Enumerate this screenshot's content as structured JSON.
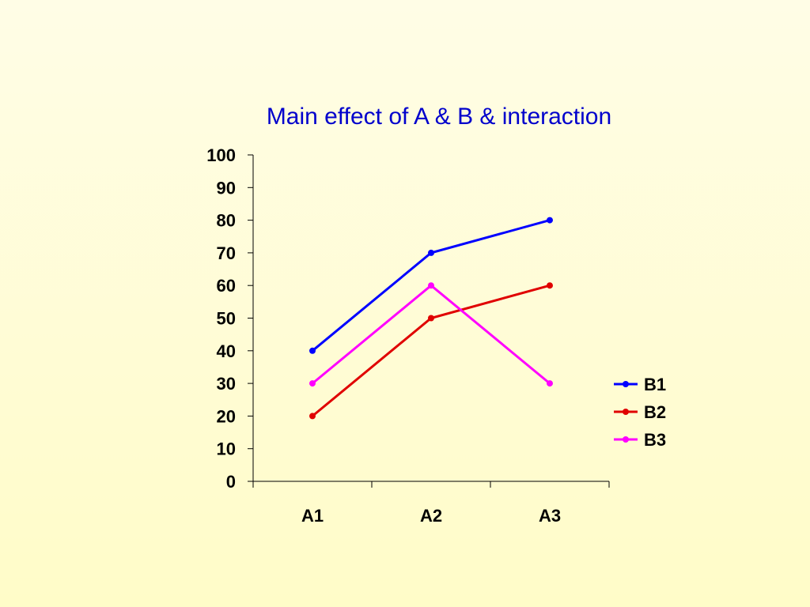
{
  "chart_data": {
    "type": "line",
    "title": "Main effect of A & B & interaction",
    "xlabel": "",
    "ylabel": "",
    "categories": [
      "A1",
      "A2",
      "A3"
    ],
    "ylim": [
      0,
      100
    ],
    "yticks": [
      "0",
      "10",
      "20",
      "30",
      "40",
      "50",
      "60",
      "70",
      "80",
      "90",
      "100"
    ],
    "grid": false,
    "legend_position": "right",
    "series": [
      {
        "name": "B1",
        "values": [
          40,
          70,
          80
        ],
        "color": "#0000ff"
      },
      {
        "name": "B2",
        "values": [
          20,
          50,
          60
        ],
        "color": "#e00000"
      },
      {
        "name": "B3",
        "values": [
          30,
          60,
          30
        ],
        "color": "#ff00ff"
      }
    ],
    "title_color": "#0000cc"
  }
}
